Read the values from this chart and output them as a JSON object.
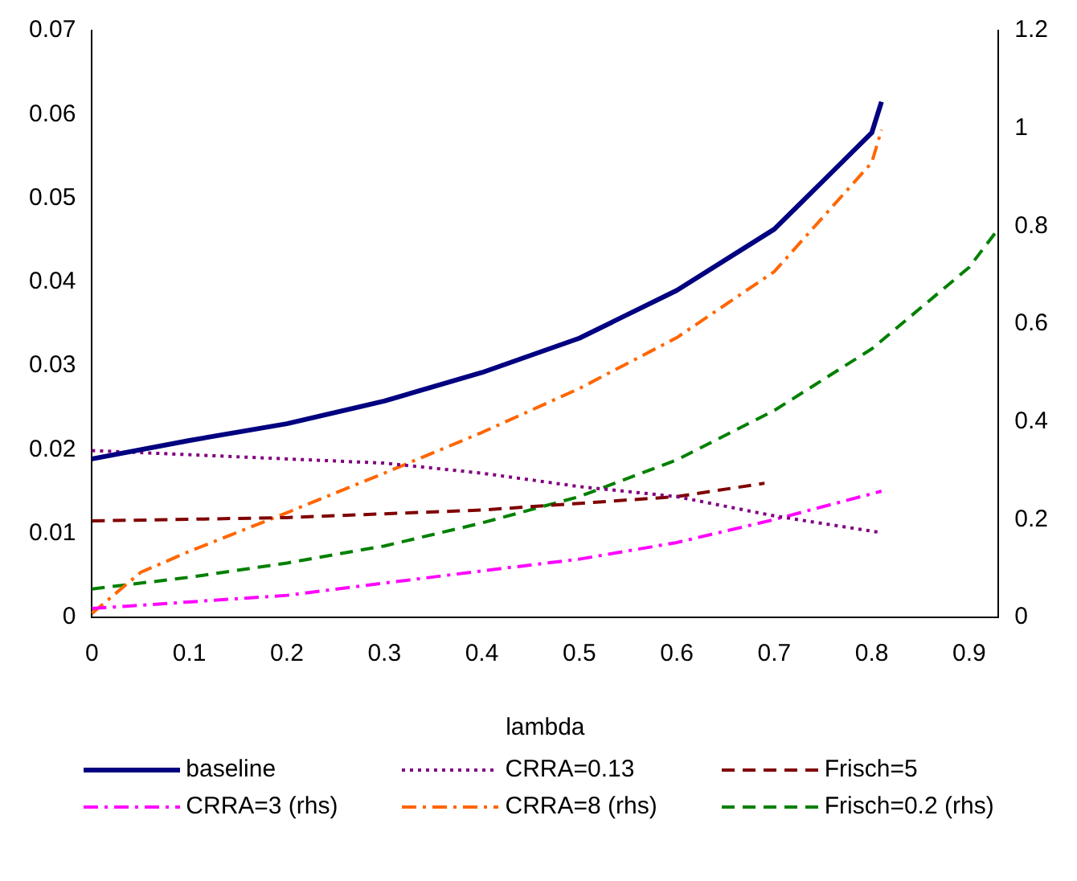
{
  "chart_data": {
    "type": "line",
    "xlabel": "lambda",
    "xlim": [
      0,
      0.93
    ],
    "xticks": [
      0,
      0.1,
      0.2,
      0.3,
      0.4,
      0.5,
      0.6,
      0.7,
      0.8,
      0.9
    ],
    "ylim": [
      0,
      0.07
    ],
    "yticks": [
      0,
      0.01,
      0.02,
      0.03,
      0.04,
      0.05,
      0.06,
      0.07
    ],
    "y2lim": [
      0,
      1.2
    ],
    "y2ticks": [
      0,
      0.2,
      0.4,
      0.6,
      0.8,
      1,
      1.2
    ],
    "grid": false,
    "legend": "bottom",
    "marker": "none",
    "series": [
      {
        "name": "baseline",
        "color": "#000080",
        "line_style": "solid",
        "x": [
          0,
          0.1,
          0.2,
          0.3,
          0.4,
          0.5,
          0.6,
          0.7,
          0.8,
          0.81
        ],
        "values": [
          0.0189,
          0.0211,
          0.0231,
          0.0258,
          0.0292,
          0.0333,
          0.039,
          0.0463,
          0.0578,
          0.0615
        ]
      },
      {
        "name": "CRRA=0.13",
        "color": "#800080",
        "line_style": "dotted",
        "x": [
          0,
          0.2,
          0.3,
          0.4,
          0.5,
          0.6,
          0.7,
          0.81
        ],
        "values": [
          0.0199,
          0.0189,
          0.0184,
          0.0172,
          0.0156,
          0.0144,
          0.0121,
          0.0101
        ]
      },
      {
        "name": "Frisch=5",
        "color": "#800000",
        "line_style": "dashed",
        "x": [
          0,
          0.2,
          0.4,
          0.5,
          0.6,
          0.69
        ],
        "values": [
          0.0115,
          0.0119,
          0.0128,
          0.0136,
          0.0144,
          0.016
        ]
      },
      {
        "name": "CRRA=3 (rhs)",
        "color": "#ff00ff",
        "line_style": "dashdot",
        "axis": "y2",
        "x": [
          0,
          0.2,
          0.4,
          0.5,
          0.6,
          0.7,
          0.81
        ],
        "values": [
          0.018,
          0.045,
          0.095,
          0.119,
          0.153,
          0.2,
          0.258
        ]
      },
      {
        "name": "CRRA=8 (rhs)",
        "color": "#ff6600",
        "line_style": "dashdot",
        "axis": "y2",
        "x": [
          0,
          0.05,
          0.1,
          0.2,
          0.3,
          0.4,
          0.5,
          0.6,
          0.7,
          0.8,
          0.81
        ],
        "values": [
          0.008,
          0.092,
          0.135,
          0.214,
          0.295,
          0.378,
          0.468,
          0.572,
          0.707,
          0.93,
          0.997
        ]
      },
      {
        "name": "Frisch=0.2 (rhs)",
        "color": "#008000",
        "line_style": "dashed",
        "axis": "y2",
        "x": [
          0,
          0.1,
          0.2,
          0.3,
          0.4,
          0.5,
          0.6,
          0.7,
          0.8,
          0.9,
          0.93
        ],
        "values": [
          0.058,
          0.082,
          0.111,
          0.146,
          0.193,
          0.247,
          0.322,
          0.423,
          0.549,
          0.716,
          0.795
        ]
      }
    ]
  }
}
